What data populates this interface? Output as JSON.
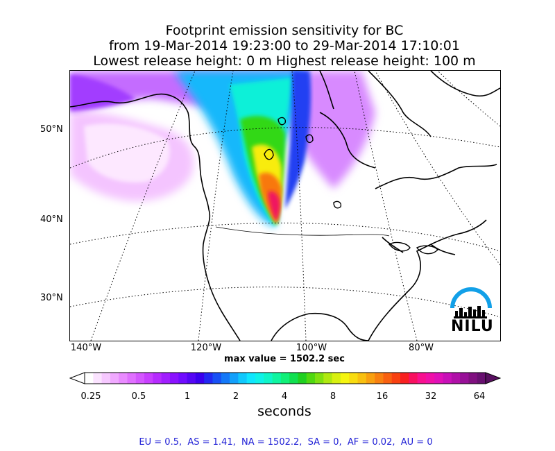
{
  "title": {
    "line1": "Footprint emission sensitivity for BC",
    "line2": "from 19-Mar-2014 19:23:00 to 29-Mar-2014 17:10:01",
    "line3": "Lowest release height: 0 m      Highest release height: 100 m"
  },
  "map": {
    "lat_labels": [
      "50°N",
      "40°N",
      "30°N"
    ],
    "lon_labels": [
      "140°W",
      "120°W",
      "100°W",
      "80°W"
    ],
    "logo_text": "NILU"
  },
  "max_value_text": "max value = 1502.2 sec",
  "colorbar": {
    "ticks": [
      "0.25",
      "0.5",
      "1",
      "2",
      "4",
      "8",
      "16",
      "32",
      "64"
    ],
    "unit": "seconds",
    "colors": [
      "#ffffff",
      "#fbe3ff",
      "#f6c8ff",
      "#f0a9ff",
      "#e98bff",
      "#e070ff",
      "#d457ff",
      "#c83fff",
      "#b62bff",
      "#a11eff",
      "#8a12ff",
      "#700cff",
      "#5506f5",
      "#3a00ee",
      "#2228f2",
      "#1850f5",
      "#1478f8",
      "#12a0fb",
      "#10c8fd",
      "#0fe6fe",
      "#0ff2e8",
      "#0ff5c8",
      "#0ff5a0",
      "#10f078",
      "#10e050",
      "#20d020",
      "#50d810",
      "#80e010",
      "#b0e810",
      "#d8f010",
      "#f5f510",
      "#f8dc10",
      "#f8c010",
      "#f8a010",
      "#f88010",
      "#f86010",
      "#f84010",
      "#f82020",
      "#f81060",
      "#f81090",
      "#f010a8",
      "#e010b8",
      "#c810b8",
      "#b010a8",
      "#981098",
      "#801080",
      "#681070"
    ],
    "under_color": "#ffffff",
    "over_color": "#581060"
  },
  "footer": "EU = 0.5,  AS = 1.41,  NA = 1502.2,  SA = 0,  AF = 0.02,  AU = 0"
}
